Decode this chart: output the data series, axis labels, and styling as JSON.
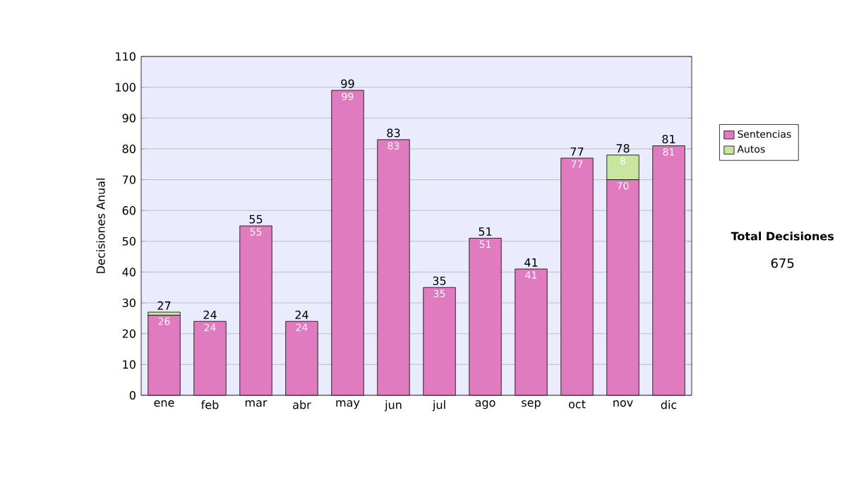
{
  "chart_data": {
    "type": "bar",
    "stacked": true,
    "ylabel": "Decisiones Anual",
    "categories": [
      "ene",
      "feb",
      "mar",
      "abr",
      "may",
      "jun",
      "jul",
      "ago",
      "sep",
      "oct",
      "nov",
      "dic"
    ],
    "series": [
      {
        "name": "Sentencias",
        "color": "#e07bbf",
        "values": [
          26,
          24,
          55,
          24,
          99,
          83,
          35,
          51,
          41,
          77,
          70,
          81
        ],
        "value_labels": [
          "26",
          "24",
          "55",
          "24",
          "99",
          "83",
          "35",
          "51",
          "41",
          "77",
          "70",
          "81"
        ]
      },
      {
        "name": "Autos",
        "color": "#c8e6a0",
        "values": [
          1,
          null,
          null,
          null,
          null,
          null,
          null,
          null,
          null,
          null,
          8,
          null
        ],
        "value_labels": [
          null,
          null,
          null,
          null,
          null,
          null,
          null,
          null,
          null,
          null,
          "8",
          null
        ]
      }
    ],
    "totals": [
      "27",
      "24",
      "55",
      "24",
      "99",
      "83",
      "35",
      "51",
      "41",
      "77",
      "78",
      "81"
    ],
    "ylim": [
      0,
      110
    ],
    "yticks": [
      0,
      10,
      20,
      30,
      40,
      50,
      60,
      70,
      80,
      90,
      100,
      110
    ],
    "grid": "y",
    "legend": "right",
    "annotations": [
      "Total Decisiones",
      "675"
    ]
  }
}
